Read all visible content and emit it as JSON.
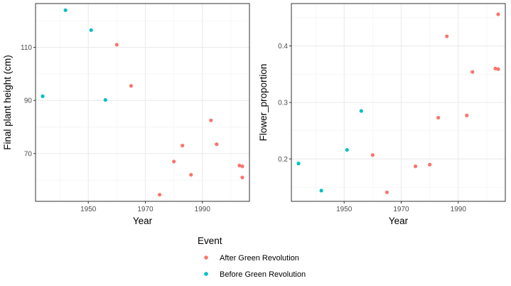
{
  "chart_data": [
    {
      "type": "scatter",
      "xlabel": "Year",
      "ylabel": "Final plant height (cm)",
      "xlim": [
        1931.5,
        2006.5
      ],
      "ylim": [
        52.0,
        126.5
      ],
      "xticks": [
        1950,
        1970,
        1990
      ],
      "yticks": [
        70,
        90,
        110
      ],
      "grid": true,
      "series": [
        {
          "name": "After Green Revolution",
          "color": "#F8766D",
          "x": [
            1960,
            1965,
            1975,
            1980,
            1983,
            1986,
            1993,
            1995,
            2003,
            2004,
            2004
          ],
          "y": [
            111,
            95.5,
            54.5,
            67,
            73,
            62,
            82.5,
            73.5,
            65.5,
            65.2,
            61
          ]
        },
        {
          "name": "Before Green Revolution",
          "color": "#00BFC4",
          "x": [
            1934,
            1942,
            1951,
            1956
          ],
          "y": [
            91.6,
            124,
            116.5,
            90.2
          ]
        }
      ]
    },
    {
      "type": "scatter",
      "xlabel": "Year",
      "ylabel": "Flower_proportion",
      "xlim": [
        1931.5,
        2006.5
      ],
      "ylim": [
        0.125,
        0.475
      ],
      "xticks": [
        1950,
        1970,
        1990
      ],
      "yticks": [
        0.2,
        0.3,
        0.4
      ],
      "grid": true,
      "series": [
        {
          "name": "After Green Revolution",
          "color": "#F8766D",
          "x": [
            1960,
            1965,
            1975,
            1980,
            1983,
            1986,
            1993,
            1995,
            2003,
            2004,
            2004
          ],
          "y": [
            0.207,
            0.141,
            0.187,
            0.19,
            0.273,
            0.417,
            0.277,
            0.354,
            0.36,
            0.359,
            0.456
          ]
        },
        {
          "name": "Before Green Revolution",
          "color": "#00BFC4",
          "x": [
            1934,
            1942,
            1951,
            1956
          ],
          "y": [
            0.192,
            0.144,
            0.216,
            0.285
          ]
        }
      ]
    }
  ],
  "legend": {
    "title": "Event",
    "position": "bottom",
    "items": [
      {
        "label": "After Green Revolution",
        "color": "#F8766D"
      },
      {
        "label": "Before Green Revolution",
        "color": "#00BFC4"
      }
    ]
  }
}
